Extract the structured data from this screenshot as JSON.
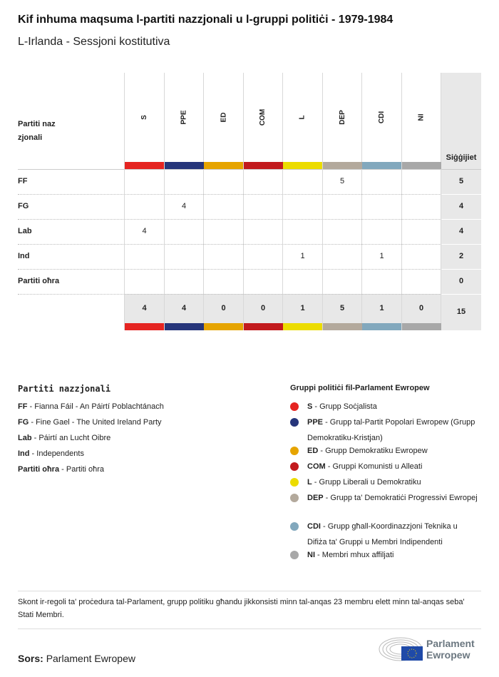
{
  "title": "Kif inhuma maqsuma l-partiti nazzjonali u l-gruppi politiċi - 1979-1984",
  "subtitle": "L-Irlanda - Sessjoni kostitutiva",
  "chart_data": {
    "type": "table",
    "row_header": "Partiti nazzjonali",
    "total_header": "Siġġijiet",
    "columns": [
      {
        "code": "S",
        "color": "#e52421"
      },
      {
        "code": "PPE",
        "color": "#26357a"
      },
      {
        "code": "ED",
        "color": "#e6a400"
      },
      {
        "code": "COM",
        "color": "#c21a1d"
      },
      {
        "code": "L",
        "color": "#ecdc00"
      },
      {
        "code": "DEP",
        "color": "#b3a99c"
      },
      {
        "code": "CDI",
        "color": "#82a8bd"
      },
      {
        "code": "NI",
        "color": "#a8a8a8"
      }
    ],
    "rows": [
      {
        "label": "FF",
        "values": [
          "",
          "",
          "",
          "",
          "",
          "5",
          "",
          ""
        ],
        "total": "5"
      },
      {
        "label": "FG",
        "values": [
          "",
          "4",
          "",
          "",
          "",
          "",
          "",
          ""
        ],
        "total": "4"
      },
      {
        "label": "Lab",
        "values": [
          "4",
          "",
          "",
          "",
          "",
          "",
          "",
          ""
        ],
        "total": "4"
      },
      {
        "label": "Ind",
        "values": [
          "",
          "",
          "",
          "",
          "1",
          "",
          "1",
          ""
        ],
        "total": "2"
      },
      {
        "label": "Partiti oħra",
        "values": [
          "",
          "",
          "",
          "",
          "",
          "",
          "",
          ""
        ],
        "total": "0"
      }
    ],
    "column_totals": [
      "4",
      "4",
      "0",
      "0",
      "1",
      "5",
      "1",
      "0"
    ],
    "grand_total": "15"
  },
  "legend_national": {
    "title": "Partiti nazzjonali",
    "items": [
      {
        "code": "FF",
        "text": "Fianna Fáil - An Páirtí Poblachtánach"
      },
      {
        "code": "FG",
        "text": "Fine Gael - The United Ireland Party"
      },
      {
        "code": "Lab",
        "text": "Páirtí an Lucht Oibre"
      },
      {
        "code": "Ind",
        "text": "Independents"
      },
      {
        "code": "Partiti oħra",
        "text": "Partiti oħra"
      }
    ]
  },
  "legend_groups": {
    "title": "Gruppi politiċi fil-Parlament Ewropew",
    "items": [
      {
        "code": "S",
        "text": "Grupp Soċjalista"
      },
      {
        "code": "PPE",
        "text": "Grupp tal-Partit Popolari Ewropew (Grupp Demokratiku-Kristjan)"
      },
      {
        "code": "ED",
        "text": "Grupp Demokratiku Ewropew"
      },
      {
        "code": "COM",
        "text": "Gruppi Komunisti u Alleati"
      },
      {
        "code": "L",
        "text": "Grupp Liberali u Demokratiku"
      },
      {
        "code": "DEP",
        "text": "Grupp ta' Demokratiċi Progressivi Ewropej"
      },
      {
        "code": "CDI",
        "text": "Grupp għall-Koordinazzjoni Teknika u Difiża ta' Gruppi u Membri Indipendenti"
      },
      {
        "code": "NI",
        "text": "Membri mhux affiljati"
      }
    ]
  },
  "note": "Skont ir-regoli ta' proċedura tal-Parlament, grupp politiku għandu jikkonsisti minn tal-anqas 23 membru elett minn tal-anqas seba' Stati Membri.",
  "source_label": "Sors:",
  "source": "Parlament Ewropew",
  "logo_text": [
    "Parlament",
    "Ewropew"
  ]
}
